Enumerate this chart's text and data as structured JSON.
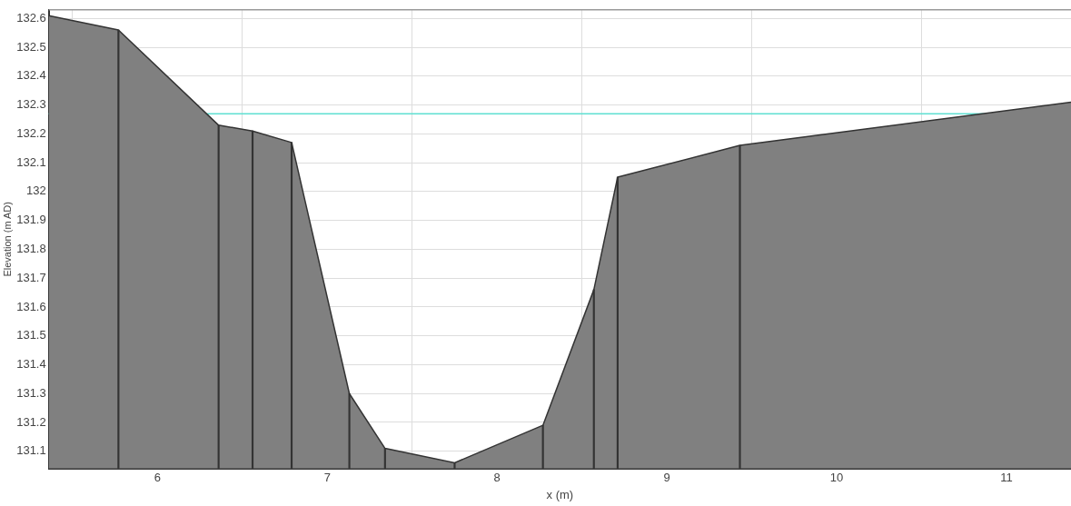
{
  "chart_data": {
    "type": "area",
    "xlabel": "x (m)",
    "ylabel": "Elevation (m AD)",
    "series": [
      {
        "color": "#808080",
        "x": [
          5.36,
          5.77,
          6.36,
          6.56,
          6.79,
          7.13,
          7.34,
          7.75,
          8.27,
          8.57,
          8.71,
          9.43,
          11.38
        ],
        "values": [
          132.61,
          132.56,
          132.23,
          132.21,
          132.17,
          131.3,
          131.11,
          131.06,
          131.19,
          131.66,
          132.05,
          132.16,
          132.31
        ]
      },
      {
        "type": "bar",
        "color": "#333333",
        "x": [
          5.77,
          6.36,
          6.56,
          6.79,
          7.13,
          7.34,
          7.75,
          8.27,
          8.57,
          8.71,
          9.43
        ],
        "values": [
          132.56,
          132.23,
          132.21,
          132.17,
          131.3,
          131.11,
          131.06,
          131.19,
          131.66,
          132.05,
          132.16
        ]
      }
    ],
    "xlim": [
      5.36,
      11.38
    ],
    "xticks": [
      6,
      7,
      8,
      9,
      10,
      11
    ],
    "ylim": [
      131.04,
      132.63
    ],
    "yticks": [
      131.1,
      131.2,
      131.3,
      131.4,
      131.5,
      131.6,
      131.7,
      131.8,
      131.9,
      132,
      132.1,
      132.2,
      132.3,
      132.4,
      132.5,
      132.6
    ],
    "ref_lines": [
      {
        "axis": "y",
        "value": 132.27,
        "color": "#5fe0d2"
      }
    ],
    "grid": true,
    "legend": false,
    "marker": "none",
    "line_style": "solid"
  }
}
